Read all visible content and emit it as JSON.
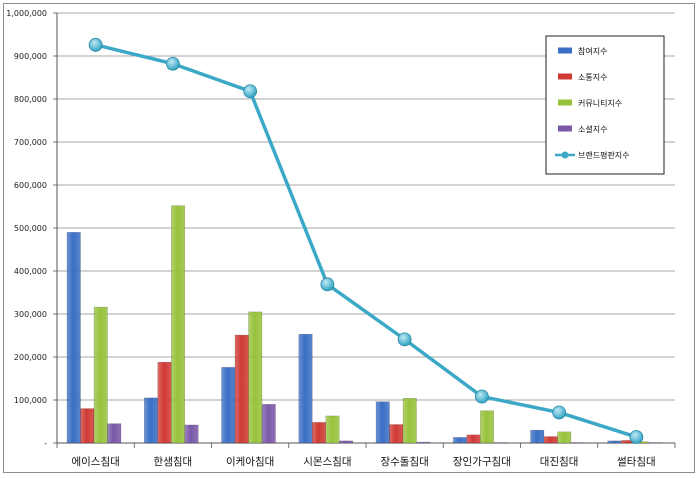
{
  "chart_data": {
    "type": "bar",
    "combo_line_series": "브랜드평판지수",
    "categories": [
      "에이스침대",
      "한샘침대",
      "이케아침대",
      "시몬스침대",
      "장수돌침대",
      "장인가구침대",
      "대진침대",
      "썰타침대"
    ],
    "ylim": [
      0,
      1000000
    ],
    "yticks": [
      "-",
      "100,000",
      "200,000",
      "300,000",
      "400,000",
      "500,000",
      "600,000",
      "700,000",
      "800,000",
      "900,000",
      "1,000,000"
    ],
    "grid": true,
    "legend_position": "top-right",
    "series": [
      {
        "name": "참여지수",
        "type": "bar",
        "color": "#3a6fc4",
        "values": [
          490000,
          105000,
          176000,
          253000,
          96000,
          13000,
          30000,
          5000
        ]
      },
      {
        "name": "소통지수",
        "type": "bar",
        "color": "#d03a35",
        "values": [
          80000,
          188000,
          251000,
          48000,
          43000,
          19000,
          15000,
          6000
        ]
      },
      {
        "name": "커뮤니티지수",
        "type": "bar",
        "color": "#98c23c",
        "values": [
          316000,
          552000,
          305000,
          63000,
          104000,
          75000,
          26000,
          3000
        ]
      },
      {
        "name": "소셜지수",
        "type": "bar",
        "color": "#7a58a8",
        "values": [
          45000,
          42000,
          90000,
          5000,
          2000,
          1000,
          1000,
          1000
        ]
      },
      {
        "name": "브랜드평판지수",
        "type": "line",
        "color": "#3aa8c6",
        "values": [
          926000,
          882000,
          818000,
          369000,
          241000,
          108000,
          71000,
          14000
        ]
      }
    ]
  }
}
